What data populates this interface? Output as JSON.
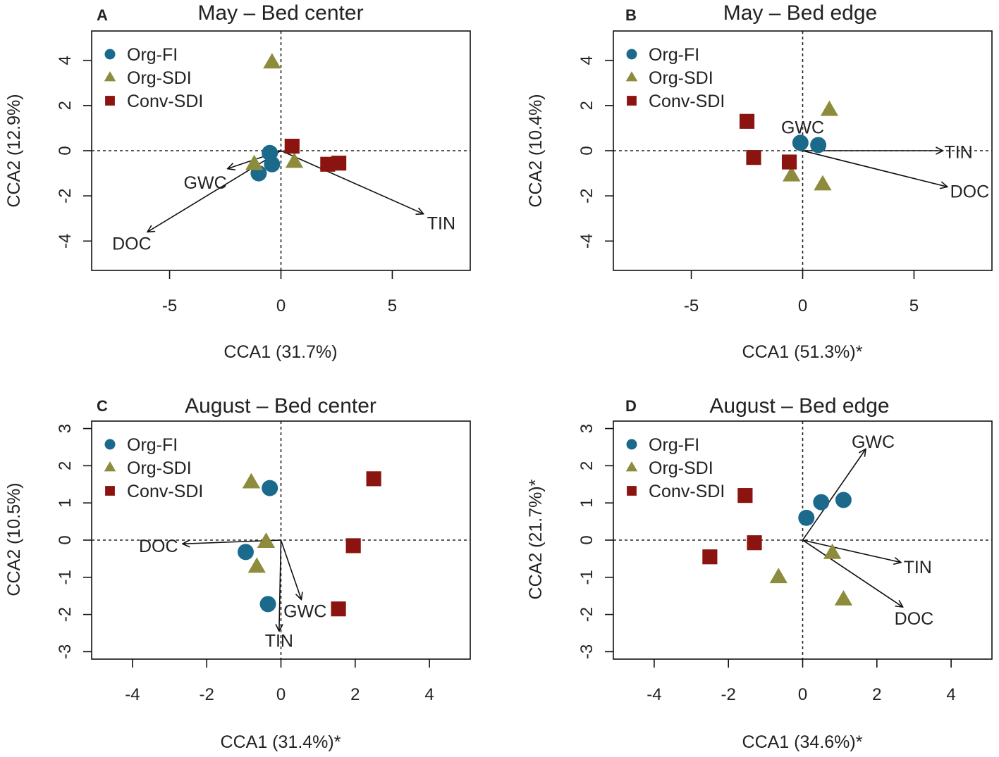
{
  "colors": {
    "org_fi": "#1b6a8c",
    "org_sdi": "#8c8c3c",
    "conv_sdi": "#8b1410",
    "arrow": "#111111",
    "frame": "#111111"
  },
  "chart_data": [
    {
      "type": "scatter",
      "panel_letter": "A",
      "title": "May – Bed center",
      "xlabel": "CCA1 (31.7%)",
      "ylabel": "CCA2 (12.9%)",
      "xlim": [
        -8.5,
        8.5
      ],
      "ylim": [
        -5.3,
        5.3
      ],
      "xticks": [
        -5,
        0,
        5
      ],
      "yticks": [
        -4,
        -2,
        0,
        2,
        4
      ],
      "legend": {
        "position": "top-left",
        "entries": [
          "Org-FI",
          "Org-SDI",
          "Conv-SDI"
        ]
      },
      "series": [
        {
          "name": "Org-FI",
          "marker": "circle",
          "points": [
            [
              -0.5,
              -0.1
            ],
            [
              -0.4,
              -0.6
            ],
            [
              -1.0,
              -1.0
            ]
          ]
        },
        {
          "name": "Org-SDI",
          "marker": "triangle",
          "points": [
            [
              -0.4,
              3.9
            ],
            [
              -1.2,
              -0.6
            ],
            [
              0.6,
              -0.5
            ]
          ]
        },
        {
          "name": "Conv-SDI",
          "marker": "square",
          "points": [
            [
              0.5,
              0.2
            ],
            [
              2.1,
              -0.6
            ],
            [
              2.6,
              -0.55
            ]
          ]
        }
      ],
      "vectors": [
        {
          "label": "GWC",
          "end": [
            -2.4,
            -0.8
          ],
          "label_pos": [
            -3.4,
            -1.4
          ]
        },
        {
          "label": "DOC",
          "end": [
            -6.0,
            -3.6
          ],
          "label_pos": [
            -6.7,
            -4.1
          ]
        },
        {
          "label": "TIN",
          "end": [
            6.4,
            -2.8
          ],
          "label_pos": [
            7.2,
            -3.2
          ]
        }
      ]
    },
    {
      "type": "scatter",
      "panel_letter": "B",
      "title": "May – Bed edge",
      "xlabel": "CCA1 (51.3%)*",
      "ylabel": "CCA2 (10.4%)",
      "xlim": [
        -8.5,
        8.5
      ],
      "ylim": [
        -5.3,
        5.3
      ],
      "xticks": [
        -5,
        0,
        5
      ],
      "yticks": [
        -4,
        -2,
        0,
        2,
        4
      ],
      "legend": {
        "position": "top-left",
        "entries": [
          "Org-FI",
          "Org-SDI",
          "Conv-SDI"
        ]
      },
      "series": [
        {
          "name": "Org-FI",
          "marker": "circle",
          "points": [
            [
              -0.1,
              0.35
            ],
            [
              0.7,
              0.25
            ]
          ]
        },
        {
          "name": "Org-SDI",
          "marker": "triangle",
          "points": [
            [
              1.2,
              1.8
            ],
            [
              -0.5,
              -1.1
            ],
            [
              0.9,
              -1.5
            ]
          ]
        },
        {
          "name": "Conv-SDI",
          "marker": "square",
          "points": [
            [
              -2.5,
              1.3
            ],
            [
              -2.2,
              -0.3
            ],
            [
              -0.6,
              -0.5
            ]
          ]
        }
      ],
      "vectors": [
        {
          "label": "GWC",
          "end": [
            0.1,
            0.6
          ],
          "label_pos": [
            0.0,
            1.05
          ]
        },
        {
          "label": "TIN",
          "end": [
            6.3,
            0.0
          ],
          "label_pos": [
            7.0,
            -0.05
          ]
        },
        {
          "label": "DOC",
          "end": [
            6.5,
            -1.6
          ],
          "label_pos": [
            7.5,
            -1.8
          ]
        }
      ]
    },
    {
      "type": "scatter",
      "panel_letter": "C",
      "title": "August – Bed center",
      "xlabel": "CCA1 (31.4%)*",
      "ylabel": "CCA2 (10.5%)",
      "xlim": [
        -5.1,
        5.1
      ],
      "ylim": [
        -3.2,
        3.2
      ],
      "xticks": [
        -4,
        -2,
        0,
        2,
        4
      ],
      "yticks": [
        -3,
        -2,
        -1,
        0,
        1,
        2,
        3
      ],
      "legend": {
        "position": "top-left",
        "entries": [
          "Org-FI",
          "Org-SDI",
          "Conv-SDI"
        ]
      },
      "series": [
        {
          "name": "Org-FI",
          "marker": "circle",
          "points": [
            [
              -0.3,
              1.4
            ],
            [
              -0.95,
              -0.32
            ],
            [
              -0.35,
              -1.72
            ]
          ]
        },
        {
          "name": "Org-SDI",
          "marker": "triangle",
          "points": [
            [
              -0.8,
              1.55
            ],
            [
              -0.4,
              -0.05
            ],
            [
              -0.65,
              -0.72
            ]
          ]
        },
        {
          "name": "Conv-SDI",
          "marker": "square",
          "points": [
            [
              2.5,
              1.65
            ],
            [
              1.95,
              -0.15
            ],
            [
              1.55,
              -1.85
            ]
          ]
        }
      ],
      "vectors": [
        {
          "label": "DOC",
          "end": [
            -2.65,
            -0.1
          ],
          "label_pos": [
            -3.3,
            -0.15
          ]
        },
        {
          "label": "GWC",
          "end": [
            0.55,
            -1.6
          ],
          "label_pos": [
            0.65,
            -1.9
          ]
        },
        {
          "label": "TIN",
          "end": [
            -0.05,
            -2.45
          ],
          "label_pos": [
            -0.05,
            -2.7
          ]
        }
      ]
    },
    {
      "type": "scatter",
      "panel_letter": "D",
      "title": "August – Bed edge",
      "xlabel": "CCA1 (34.6%)*",
      "ylabel": "CCA2 (21.7%)*",
      "xlim": [
        -5.1,
        5.1
      ],
      "ylim": [
        -3.2,
        3.2
      ],
      "xticks": [
        -4,
        -2,
        0,
        2,
        4
      ],
      "yticks": [
        -3,
        -2,
        -1,
        0,
        1,
        2,
        3
      ],
      "legend": {
        "position": "top-left",
        "entries": [
          "Org-FI",
          "Org-SDI",
          "Conv-SDI"
        ]
      },
      "series": [
        {
          "name": "Org-FI",
          "marker": "circle",
          "points": [
            [
              0.1,
              0.6
            ],
            [
              0.5,
              1.02
            ],
            [
              1.1,
              1.08
            ]
          ]
        },
        {
          "name": "Org-SDI",
          "marker": "triangle",
          "points": [
            [
              0.8,
              -0.35
            ],
            [
              -0.65,
              -1.0
            ],
            [
              1.1,
              -1.6
            ]
          ]
        },
        {
          "name": "Conv-SDI",
          "marker": "square",
          "points": [
            [
              -1.55,
              1.2
            ],
            [
              -1.3,
              -0.07
            ],
            [
              -2.5,
              -0.45
            ]
          ]
        }
      ],
      "vectors": [
        {
          "label": "GWC",
          "end": [
            1.7,
            2.45
          ],
          "label_pos": [
            1.9,
            2.65
          ]
        },
        {
          "label": "TIN",
          "end": [
            2.65,
            -0.6
          ],
          "label_pos": [
            3.1,
            -0.72
          ]
        },
        {
          "label": "DOC",
          "end": [
            2.7,
            -1.8
          ],
          "label_pos": [
            3.0,
            -2.1
          ]
        }
      ]
    }
  ]
}
